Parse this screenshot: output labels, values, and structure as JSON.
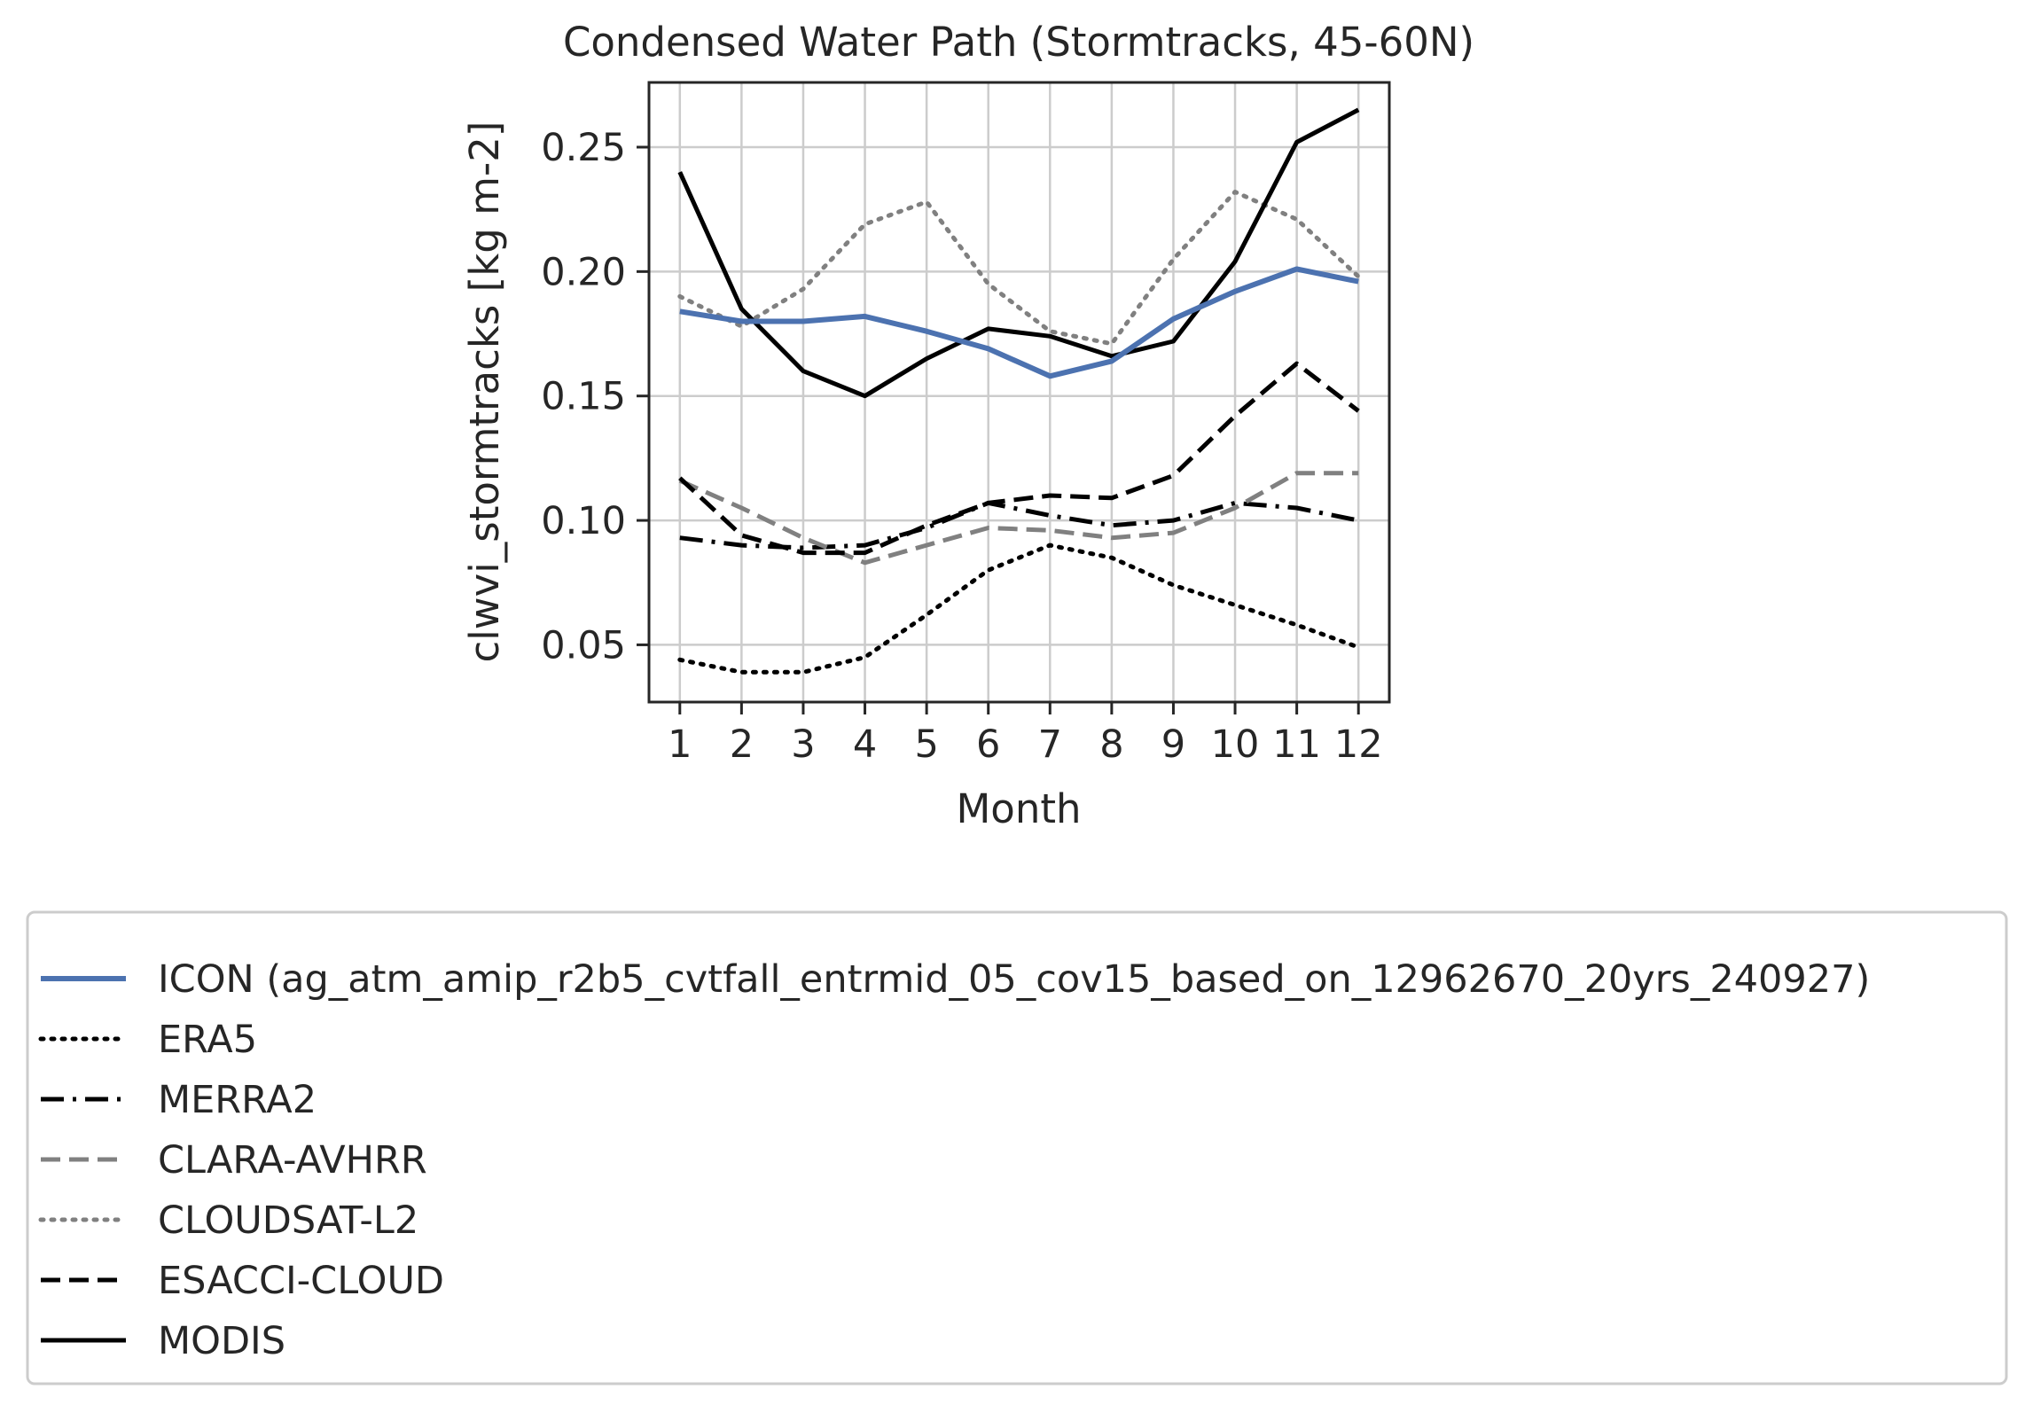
{
  "chart_data": {
    "type": "line",
    "title": "Condensed Water Path (Stormtracks, 45-60N)",
    "xlabel": "Month",
    "ylabel": "clwvi_stormtracks [kg m-2]",
    "x": [
      1,
      2,
      3,
      4,
      5,
      6,
      7,
      8,
      9,
      10,
      11,
      12
    ],
    "xlim": [
      0.5,
      12.5
    ],
    "ylim": [
      0.027,
      0.276
    ],
    "yticks": [
      0.05,
      0.1,
      0.15,
      0.2,
      0.25
    ],
    "ytick_labels": [
      "0.05",
      "0.10",
      "0.15",
      "0.20",
      "0.25"
    ],
    "xtick_labels": [
      "1",
      "2",
      "3",
      "4",
      "5",
      "6",
      "7",
      "8",
      "9",
      "10",
      "11",
      "12"
    ],
    "grid": true,
    "legend_position": "below",
    "series": [
      {
        "name": "ICON (ag_atm_amip_r2b5_cvtfall_entrmid_05_cov15_based_on_12962670_20yrs_240927)",
        "color": "#4c72b0",
        "style": "solid",
        "width": "thick",
        "values": [
          0.184,
          0.18,
          0.18,
          0.182,
          0.176,
          0.169,
          0.158,
          0.164,
          0.181,
          0.192,
          0.201,
          0.196
        ]
      },
      {
        "name": "ERA5",
        "color": "#000000",
        "style": "dotted",
        "values": [
          0.044,
          0.039,
          0.039,
          0.045,
          0.062,
          0.08,
          0.09,
          0.085,
          0.074,
          0.066,
          0.058,
          0.049
        ]
      },
      {
        "name": "MERRA2",
        "color": "#000000",
        "style": "dashdot",
        "values": [
          0.093,
          0.09,
          0.089,
          0.09,
          0.097,
          0.107,
          0.102,
          0.098,
          0.1,
          0.107,
          0.105,
          0.1
        ]
      },
      {
        "name": "CLARA-AVHRR",
        "color": "#808080",
        "style": "dashed",
        "values": [
          0.116,
          0.105,
          0.093,
          0.083,
          0.09,
          0.097,
          0.096,
          0.093,
          0.095,
          0.105,
          0.119,
          0.119
        ]
      },
      {
        "name": "CLOUDSAT-L2",
        "color": "#808080",
        "style": "dotted",
        "values": [
          0.19,
          0.178,
          0.193,
          0.219,
          0.228,
          0.195,
          0.176,
          0.171,
          0.205,
          0.232,
          0.221,
          0.198
        ]
      },
      {
        "name": "ESACCI-CLOUD",
        "color": "#000000",
        "style": "dashed",
        "values": [
          0.117,
          0.094,
          0.087,
          0.087,
          0.098,
          0.107,
          0.11,
          0.109,
          0.118,
          0.142,
          0.163,
          0.144
        ]
      },
      {
        "name": "MODIS",
        "color": "#000000",
        "style": "solid",
        "values": [
          0.24,
          0.185,
          0.16,
          0.15,
          0.165,
          0.177,
          0.174,
          0.166,
          0.172,
          0.204,
          0.252,
          0.265
        ]
      }
    ]
  }
}
